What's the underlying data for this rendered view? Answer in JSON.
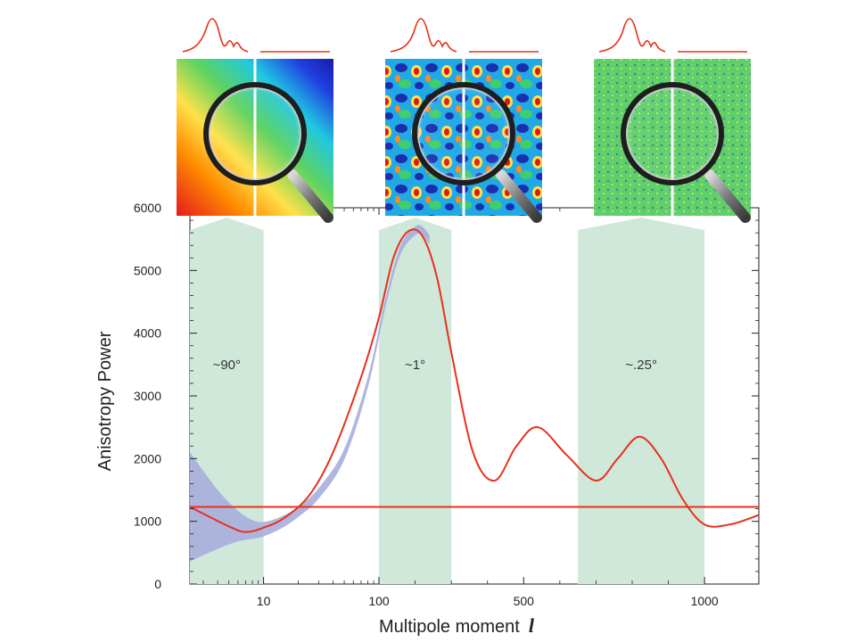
{
  "chart_data": {
    "type": "line",
    "xlabel": "Multipole moment",
    "xlabel_symbol": "l",
    "ylabel": "Anisotropy Power",
    "ylim": [
      0,
      6000
    ],
    "y_ticks": [
      0,
      1000,
      2000,
      3000,
      4000,
      5000,
      6000
    ],
    "x_ticks": [
      "10",
      "100",
      "500",
      "1000"
    ],
    "grid": false,
    "series": [
      {
        "style": "curve",
        "color": "#e8301c",
        "x": [
          2.3,
          5,
          7,
          10,
          15,
          25,
          40,
          70,
          100,
          140,
          180,
          220,
          260,
          300,
          360,
          420,
          480,
          540,
          620,
          700,
          760,
          820,
          880,
          940,
          1000,
          1070,
          1150
        ],
        "y": [
          1230,
          920,
          830,
          900,
          1050,
          1420,
          2100,
          3300,
          4250,
          5200,
          5620,
          5550,
          4900,
          3700,
          2100,
          1650,
          2200,
          2500,
          2050,
          1650,
          2000,
          2350,
          2000,
          1350,
          950,
          950,
          1100
        ]
      },
      {
        "style": "flat",
        "color": "#e8301c",
        "x": [
          2.3,
          1150
        ],
        "y": [
          1230,
          1230
        ]
      }
    ],
    "uncertainty_band": {
      "color": "#a7aedb",
      "x": [
        2.3,
        4,
        6,
        8,
        10,
        14,
        20,
        30,
        50,
        80,
        120,
        160,
        200,
        220,
        240
      ],
      "upper": [
        2100,
        1500,
        1170,
        1020,
        990,
        1070,
        1230,
        1530,
        2150,
        3300,
        4600,
        5400,
        5700,
        5700,
        5560
      ],
      "lower": [
        360,
        560,
        680,
        720,
        760,
        880,
        1070,
        1360,
        1980,
        3130,
        4460,
        5260,
        5560,
        5560,
        5420
      ]
    },
    "bands": [
      {
        "label": "~90°",
        "x_range": [
          2.3,
          10
        ]
      },
      {
        "label": "~1°",
        "x_range": [
          100,
          300
        ]
      },
      {
        "label": "~.25°",
        "x_range": [
          650,
          1000
        ]
      }
    ],
    "band_color": "#cfe8da"
  },
  "insets": [
    {
      "name": "large-scale-map",
      "colors": [
        "#e41a1c",
        "#ff8c00",
        "#ffe14a",
        "#5fd35f",
        "#20c8e0",
        "#1f3fe0",
        "#1a1aa8"
      ]
    },
    {
      "name": "medium-scale-map",
      "colors": [
        "#1a2fb0",
        "#21a9e6",
        "#3fcf6a",
        "#ffe14a",
        "#ff8a1f",
        "#d91a1a"
      ]
    },
    {
      "name": "small-scale-map",
      "colors": [
        "#5fcf6a",
        "#8fe07a",
        "#3f7f9f",
        "#d9e86a"
      ]
    }
  ]
}
